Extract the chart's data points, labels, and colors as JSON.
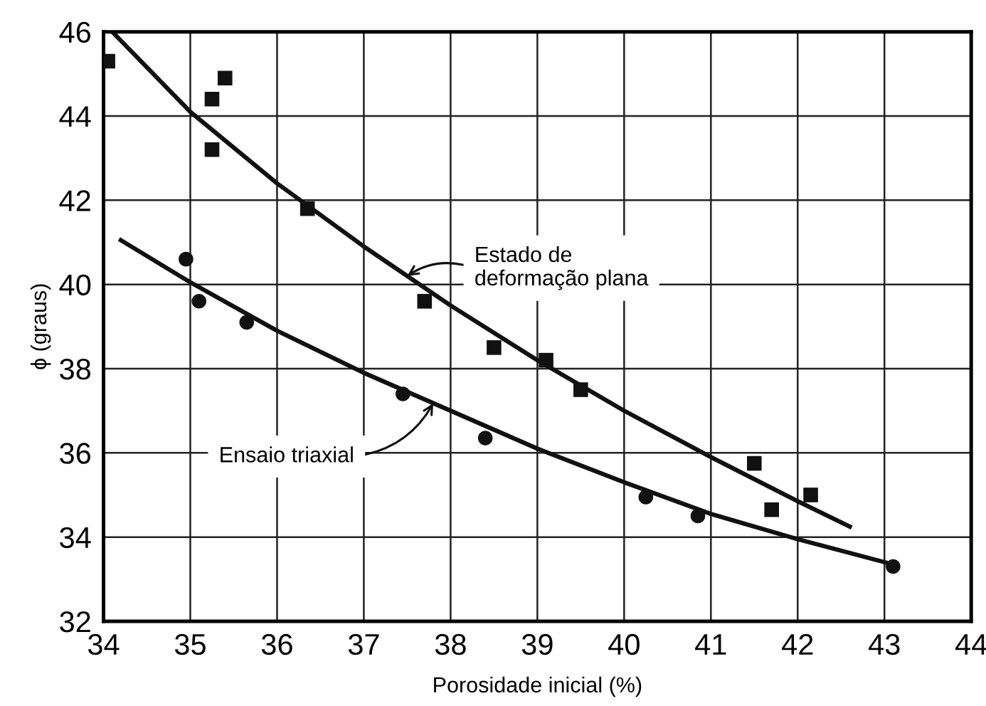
{
  "chart_data": {
    "type": "scatter",
    "xlabel": "Porosidade inicial (%)",
    "ylabel": "ϕ (graus)",
    "xlim": [
      34,
      44
    ],
    "ylim": [
      32,
      46
    ],
    "xticks": [
      34,
      35,
      36,
      37,
      38,
      39,
      40,
      41,
      42,
      43,
      44
    ],
    "yticks": [
      32,
      34,
      36,
      38,
      40,
      42,
      44,
      46
    ],
    "grid": true,
    "series": [
      {
        "marker": "square",
        "color": "#111111",
        "x": [
          34.05,
          35.25,
          35.25,
          35.4,
          36.35,
          37.7,
          38.5,
          39.1,
          39.5,
          41.5,
          41.7,
          42.15
        ],
        "values": [
          45.3,
          44.4,
          43.2,
          44.9,
          41.8,
          39.6,
          38.5,
          38.2,
          37.5,
          35.75,
          34.65,
          35.0
        ]
      },
      {
        "marker": "circle",
        "color": "#111111",
        "x": [
          34.95,
          35.1,
          35.65,
          37.45,
          38.4,
          40.25,
          40.85,
          43.1
        ],
        "values": [
          40.6,
          39.6,
          39.1,
          37.4,
          36.35,
          34.95,
          34.5,
          33.3
        ]
      },
      {
        "type": "line",
        "marker": "none",
        "line_style": "solid",
        "color": "#111111",
        "x": [
          34.1,
          35,
          36,
          37,
          38,
          39,
          40,
          41,
          42,
          42.6
        ],
        "values": [
          46.0,
          44.1,
          42.4,
          40.9,
          39.5,
          38.2,
          37.0,
          35.9,
          34.85,
          34.25
        ]
      },
      {
        "type": "line",
        "marker": "none",
        "line_style": "solid",
        "color": "#111111",
        "x": [
          34.2,
          35,
          36,
          37,
          38,
          39,
          40,
          41,
          42,
          43.1
        ],
        "values": [
          41.05,
          40.05,
          38.9,
          37.9,
          37.0,
          36.1,
          35.3,
          34.55,
          33.95,
          33.35
        ]
      }
    ],
    "annotations": [
      {
        "text": "Estado de\ndeformação plana",
        "x": 37.5,
        "y": 40.2
      },
      {
        "text": "Ensaio triaxial",
        "x": 37.8,
        "y": 37.18
      }
    ]
  }
}
